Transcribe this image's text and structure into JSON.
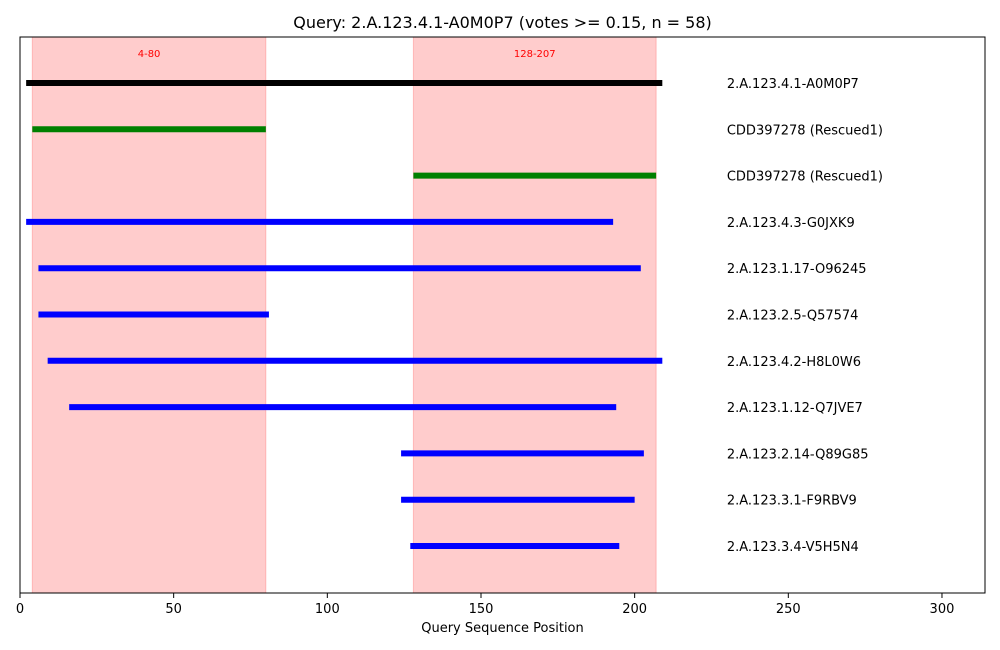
{
  "chart_data": {
    "type": "interval",
    "title": "Query: 2.A.123.4.1-A0M0P7 (votes >= 0.15, n = 58)",
    "xlabel": "Query Sequence Position",
    "ylabel": "",
    "xlim": [
      0,
      314
    ],
    "x_ticks": [
      0,
      50,
      100,
      150,
      200,
      250,
      300
    ],
    "grid": false,
    "label_x": 230,
    "regions": [
      {
        "label": "4-80",
        "start": 4,
        "end": 80,
        "color": "#ff0000"
      },
      {
        "label": "128-207",
        "start": 128,
        "end": 207,
        "color": "#ff0000"
      }
    ],
    "segments": [
      {
        "label": "2.A.123.4.1-A0M0P7",
        "start": 2,
        "end": 209,
        "color": "#000000"
      },
      {
        "label": "CDD397278 (Rescued1)",
        "start": 4,
        "end": 80,
        "color": "#008000"
      },
      {
        "label": "CDD397278 (Rescued1)",
        "start": 128,
        "end": 207,
        "color": "#008000"
      },
      {
        "label": "2.A.123.4.3-G0JXK9",
        "start": 2,
        "end": 193,
        "color": "#0000ff"
      },
      {
        "label": "2.A.123.1.17-O96245",
        "start": 6,
        "end": 202,
        "color": "#0000ff"
      },
      {
        "label": "2.A.123.2.5-Q57574",
        "start": 6,
        "end": 81,
        "color": "#0000ff"
      },
      {
        "label": "2.A.123.4.2-H8L0W6",
        "start": 9,
        "end": 209,
        "color": "#0000ff"
      },
      {
        "label": "2.A.123.1.12-Q7JVE7",
        "start": 16,
        "end": 194,
        "color": "#0000ff"
      },
      {
        "label": "2.A.123.2.14-Q89G85",
        "start": 124,
        "end": 203,
        "color": "#0000ff"
      },
      {
        "label": "2.A.123.3.1-F9RBV9",
        "start": 124,
        "end": 200,
        "color": "#0000ff"
      },
      {
        "label": "2.A.123.3.4-V5H5N4",
        "start": 127,
        "end": 195,
        "color": "#0000ff"
      }
    ]
  }
}
